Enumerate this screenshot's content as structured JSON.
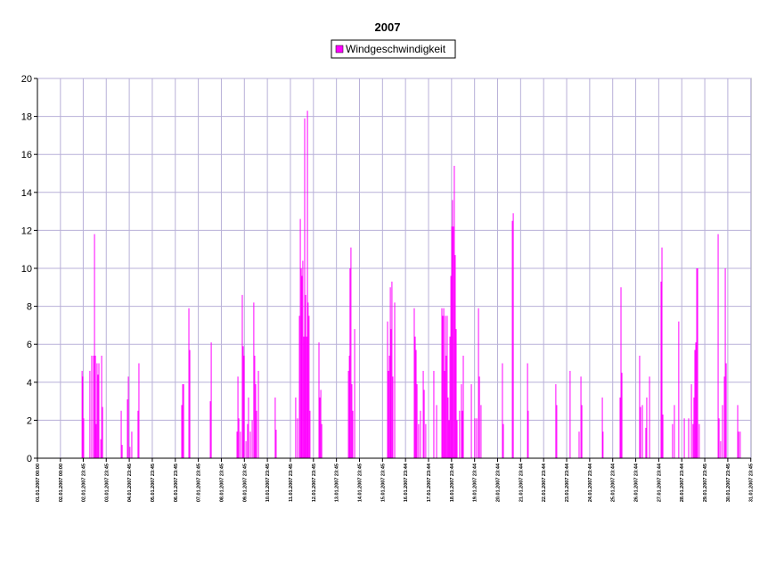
{
  "chart_data": {
    "type": "spike",
    "title": "2007",
    "series": [
      {
        "name": "Windgeschwindigkeit",
        "color": "#ff00ff",
        "x": [
          1.94,
          1.97,
          2.01,
          2.28,
          2.36,
          2.44,
          2.48,
          2.52,
          2.55,
          2.59,
          2.63,
          2.67,
          2.75,
          2.79,
          2.83,
          3.64,
          3.68,
          3.91,
          3.95,
          4.02,
          4.1,
          4.37,
          4.41,
          6.27,
          6.31,
          6.35,
          6.58,
          6.62,
          7.51,
          7.55,
          8.67,
          8.71,
          8.75,
          8.82,
          8.9,
          8.94,
          8.98,
          9.06,
          9.13,
          9.17,
          9.25,
          9.33,
          9.4,
          9.44,
          9.48,
          9.52,
          9.6,
          10.33,
          10.37,
          11.22,
          11.3,
          11.38,
          11.42,
          11.46,
          11.49,
          11.53,
          11.57,
          11.61,
          11.65,
          11.69,
          11.73,
          11.76,
          11.8,
          11.84,
          12.23,
          12.27,
          12.31,
          12.35,
          13.51,
          13.55,
          13.58,
          13.62,
          13.66,
          13.7,
          13.78,
          15.21,
          15.25,
          15.29,
          15.33,
          15.36,
          15.4,
          15.44,
          15.52,
          16.37,
          16.41,
          16.45,
          16.49,
          16.56,
          16.64,
          16.76,
          16.8,
          16.87,
          17.22,
          17.34,
          17.57,
          17.61,
          17.65,
          17.69,
          17.72,
          17.76,
          17.8,
          17.84,
          17.88,
          17.92,
          17.96,
          18.0,
          18.03,
          18.07,
          18.11,
          18.15,
          18.19,
          18.23,
          18.34,
          18.42,
          18.46,
          18.5,
          18.85,
          19.0,
          19.08,
          19.16,
          19.2,
          19.27,
          20.2,
          20.24,
          20.63,
          20.67,
          21.29,
          21.32,
          22.52,
          22.56,
          23.14,
          23.53,
          23.61,
          23.65,
          24.54,
          24.57,
          25.31,
          25.35,
          25.39,
          26.16,
          26.2,
          26.28,
          26.43,
          26.47,
          26.59,
          27.09,
          27.13,
          27.17,
          27.59,
          27.67,
          27.86,
          28.1,
          28.29,
          28.41,
          28.48,
          28.52,
          28.56,
          28.6,
          28.64,
          28.68,
          28.75,
          29.57,
          29.61,
          29.68,
          29.76,
          29.84,
          29.88,
          29.92,
          30.42,
          30.46,
          30.53
        ],
        "values": [
          4.6,
          4.3,
          2.1,
          4.6,
          5.4,
          5.4,
          11.8,
          5.4,
          1.8,
          5,
          4.4,
          5,
          1,
          5.4,
          2.7,
          2.5,
          0.7,
          3.1,
          4.3,
          0.6,
          1.4,
          2.5,
          5,
          2.8,
          3.9,
          3.9,
          7.9,
          5.7,
          3,
          6.1,
          1.4,
          4.3,
          2.1,
          1.4,
          8.6,
          5.9,
          5.4,
          0.9,
          1.8,
          3.2,
          1.4,
          2,
          8.2,
          5.4,
          3.9,
          2.5,
          4.6,
          3.2,
          1.5,
          3.2,
          2.1,
          7.5,
          12.6,
          10,
          9.6,
          10.4,
          6.4,
          17.9,
          8.6,
          6.4,
          18.3,
          8.2,
          7.5,
          2.5,
          6.1,
          3.2,
          3.6,
          1.8,
          4.6,
          5.4,
          10,
          11.1,
          3.9,
          2.5,
          6.8,
          7.2,
          4.6,
          5.4,
          9,
          6.8,
          9.3,
          4.3,
          8.2,
          7.9,
          6.4,
          5.7,
          3.9,
          1.8,
          2.5,
          4.6,
          3.6,
          1.8,
          4.6,
          2.8,
          7.9,
          7.5,
          7.9,
          4.6,
          7.5,
          5.4,
          7.5,
          3.2,
          2,
          6.4,
          9.6,
          12.2,
          13.6,
          12.2,
          15.4,
          10.7,
          6.8,
          2,
          2.5,
          3.9,
          2.5,
          5.4,
          3.9,
          2.1,
          2.1,
          7.9,
          4.3,
          2.8,
          5,
          1.8,
          12.5,
          12.9,
          5,
          2.5,
          3.9,
          2.8,
          4.6,
          1.4,
          4.3,
          2.8,
          3.2,
          1.4,
          3.2,
          9,
          4.5,
          5.4,
          2.7,
          2.8,
          1.6,
          3.2,
          4.3,
          9.3,
          11.1,
          2.3,
          1.8,
          2.8,
          7.2,
          2.1,
          2.1,
          3.9,
          1.8,
          3.2,
          5.7,
          6.1,
          10,
          10,
          1.8,
          11.8,
          2.1,
          0.9,
          2.8,
          4.3,
          10,
          5,
          2.8,
          1.4,
          1.4
        ]
      }
    ],
    "xlim": [
      0,
      31
    ],
    "xticks": [
      {
        "value": 0,
        "label": "01.01.2007 00:00"
      },
      {
        "value": 1,
        "label": "02.01.2007 00:00"
      },
      {
        "value": 1.99,
        "label": "02.01.2007 23:45"
      },
      {
        "value": 2.99,
        "label": "03.01.2007 23:45"
      },
      {
        "value": 3.99,
        "label": "04.01.2007 23:45"
      },
      {
        "value": 4.99,
        "label": "05.01.2007 23:45"
      },
      {
        "value": 5.99,
        "label": "06.01.2007 23:45"
      },
      {
        "value": 6.99,
        "label": "07.01.2007 23:45"
      },
      {
        "value": 7.99,
        "label": "08.01.2007 23:45"
      },
      {
        "value": 8.99,
        "label": "09.01.2007 23:45"
      },
      {
        "value": 9.99,
        "label": "10.01.2007 23:45"
      },
      {
        "value": 10.99,
        "label": "11.01.2007 23:45"
      },
      {
        "value": 11.99,
        "label": "12.01.2007 23:45"
      },
      {
        "value": 12.99,
        "label": "13.01.2007 23:45"
      },
      {
        "value": 13.99,
        "label": "14.01.2007 23:45"
      },
      {
        "value": 14.99,
        "label": "15.01.2007 23:45"
      },
      {
        "value": 15.99,
        "label": "16.01.2007 23:44"
      },
      {
        "value": 16.99,
        "label": "17.01.2007 23:44"
      },
      {
        "value": 17.99,
        "label": "18.01.2007 23:44"
      },
      {
        "value": 18.99,
        "label": "19.01.2007 23:44"
      },
      {
        "value": 19.99,
        "label": "20.01.2007 23:44"
      },
      {
        "value": 20.99,
        "label": "21.01.2007 23:44"
      },
      {
        "value": 21.99,
        "label": "22.01.2007 23:44"
      },
      {
        "value": 22.99,
        "label": "23.01.2007 23:44"
      },
      {
        "value": 23.99,
        "label": "24.01.2007 23:44"
      },
      {
        "value": 24.99,
        "label": "25.01.2007 23:44"
      },
      {
        "value": 25.99,
        "label": "26.01.2007 23:44"
      },
      {
        "value": 26.99,
        "label": "27.01.2007 23:44"
      },
      {
        "value": 27.99,
        "label": "28.01.2007 23:44"
      },
      {
        "value": 28.99,
        "label": "29.01.2007 23:45"
      },
      {
        "value": 29.99,
        "label": "30.01.2007 23:45"
      },
      {
        "value": 30.99,
        "label": "31.01.2007 23:45"
      }
    ],
    "ylim": [
      0,
      20
    ],
    "yticks": [
      0,
      2,
      4,
      6,
      8,
      10,
      12,
      14,
      16,
      18,
      20
    ],
    "grid": true,
    "legend": "top"
  }
}
